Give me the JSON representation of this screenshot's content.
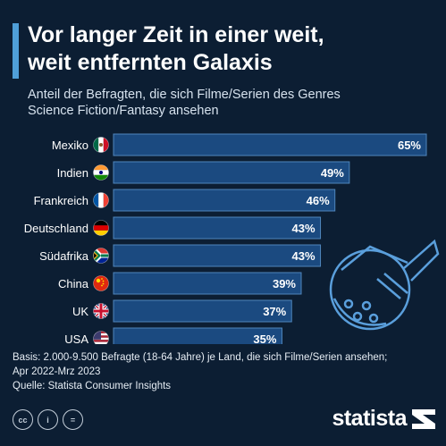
{
  "header": {
    "title_line1": "Vor langer Zeit in einer weit,",
    "title_line2": "weit entfernten Galaxis",
    "subtitle_line1": "Anteil der Befragten, die sich Filme/Serien des Genres",
    "subtitle_line2": "Science Fiction/Fantasy ansehen"
  },
  "chart_data": {
    "type": "bar",
    "orientation": "horizontal",
    "categories": [
      "Mexiko",
      "Indien",
      "Frankreich",
      "Deutschland",
      "Südafrika",
      "China",
      "UK",
      "USA"
    ],
    "flag_icons": [
      "mexico-flag-icon",
      "india-flag-icon",
      "france-flag-icon",
      "germany-flag-icon",
      "south-africa-flag-icon",
      "china-flag-icon",
      "uk-flag-icon",
      "usa-flag-icon"
    ],
    "values": [
      65,
      49,
      46,
      43,
      43,
      39,
      37,
      35
    ],
    "value_labels": [
      "65%",
      "49%",
      "46%",
      "43%",
      "43%",
      "39%",
      "37%",
      "35%"
    ],
    "xlim": [
      0,
      65
    ],
    "grid": false,
    "bar_color": "#1b4a80",
    "bar_border_color": "#4f86bd"
  },
  "footer": {
    "basis_line1": "Basis: 2.000-9.500 Befragte (18-64 Jahre) je Land, die sich Filme/Serien ansehen;",
    "basis_line2": "Apr 2022-Mrz 2023",
    "source": "Quelle: Statista Consumer Insights"
  },
  "license_icons": [
    "cc-icon",
    "person-icon",
    "equals-icon"
  ],
  "license_labels": [
    "cc",
    "i",
    "="
  ],
  "brand": {
    "name": "statista",
    "accent": "#4f9fd8"
  },
  "colors": {
    "background": "#0c1e33",
    "accent": "#4f9fd8"
  }
}
